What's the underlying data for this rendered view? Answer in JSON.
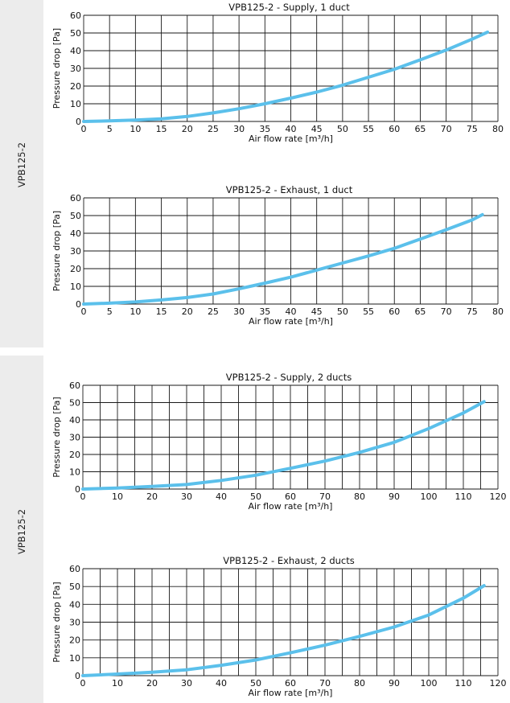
{
  "side_labels": [
    "VPB125-2",
    "VPB125-2"
  ],
  "chart_data": [
    {
      "type": "line",
      "title": "VPB125-2 - Supply, 1 duct",
      "xlabel": "Air flow rate [m³/h]",
      "ylabel": "Pressure drop [Pa]",
      "xlim": [
        0,
        80
      ],
      "ylim": [
        0,
        60
      ],
      "xticks": [
        0,
        5,
        10,
        15,
        20,
        25,
        30,
        35,
        40,
        45,
        50,
        55,
        60,
        65,
        70,
        75,
        80
      ],
      "yticks": [
        0,
        10,
        20,
        30,
        40,
        50,
        60
      ],
      "grid": true,
      "series": [
        {
          "color": "#5bc0eb",
          "x": [
            0,
            5,
            10,
            15,
            20,
            25,
            30,
            35,
            40,
            45,
            50,
            55,
            60,
            65,
            70,
            75,
            78
          ],
          "y": [
            0,
            0.3,
            0.8,
            1.5,
            2.8,
            4.8,
            7.2,
            10,
            13.2,
            16.6,
            20.5,
            25,
            29.5,
            34.8,
            40.3,
            46.5,
            50.5
          ]
        }
      ]
    },
    {
      "type": "line",
      "title": "VPB125-2 - Exhaust, 1 duct",
      "xlabel": "Air flow rate [m³/h]",
      "ylabel": "Pressure drop [Pa]",
      "xlim": [
        0,
        80
      ],
      "ylim": [
        0,
        60
      ],
      "xticks": [
        0,
        5,
        10,
        15,
        20,
        25,
        30,
        35,
        40,
        45,
        50,
        55,
        60,
        65,
        70,
        75,
        80
      ],
      "yticks": [
        0,
        10,
        20,
        30,
        40,
        50,
        60
      ],
      "grid": true,
      "series": [
        {
          "color": "#5bc0eb",
          "x": [
            0,
            5,
            10,
            15,
            20,
            25,
            30,
            35,
            40,
            45,
            50,
            55,
            60,
            65,
            70,
            75,
            77
          ],
          "y": [
            0,
            0.5,
            1.2,
            2.3,
            3.7,
            5.7,
            8.6,
            11.8,
            15.2,
            19.2,
            23.2,
            27.2,
            31.5,
            36.7,
            42,
            47.5,
            50.5
          ]
        }
      ]
    },
    {
      "type": "line",
      "title": "VPB125-2 - Supply, 2 ducts",
      "xlabel": "Air flow rate [m³/h]",
      "ylabel": "Pressure drop [Pa]",
      "xlim": [
        0,
        120
      ],
      "ylim": [
        0,
        60
      ],
      "xticks": [
        0,
        10,
        20,
        30,
        40,
        50,
        60,
        70,
        80,
        90,
        100,
        110,
        120
      ],
      "yticks": [
        0,
        10,
        20,
        30,
        40,
        50,
        60
      ],
      "xgrid_step": 5,
      "grid": true,
      "series": [
        {
          "color": "#5bc0eb",
          "x": [
            0,
            10,
            20,
            30,
            40,
            50,
            60,
            70,
            80,
            90,
            100,
            110,
            116
          ],
          "y": [
            0,
            0.6,
            1.5,
            2.6,
            5,
            8,
            12,
            16.2,
            21.2,
            27,
            35,
            44,
            50.5
          ]
        }
      ]
    },
    {
      "type": "line",
      "title": "VPB125-2 - Exhaust, 2 ducts",
      "xlabel": "Air flow rate [m³/h]",
      "ylabel": "Pressure drop [Pa]",
      "xlim": [
        0,
        120
      ],
      "ylim": [
        0,
        60
      ],
      "xticks": [
        0,
        10,
        20,
        30,
        40,
        50,
        60,
        70,
        80,
        90,
        100,
        110,
        120
      ],
      "yticks": [
        0,
        10,
        20,
        30,
        40,
        50,
        60
      ],
      "xgrid_step": 5,
      "grid": true,
      "series": [
        {
          "color": "#5bc0eb",
          "x": [
            0,
            10,
            20,
            30,
            40,
            50,
            60,
            70,
            80,
            90,
            100,
            110,
            116
          ],
          "y": [
            0,
            0.9,
            1.9,
            3.3,
            5.8,
            8.8,
            12.8,
            17.1,
            22,
            27.3,
            34,
            43.5,
            50.5
          ]
        }
      ]
    }
  ]
}
